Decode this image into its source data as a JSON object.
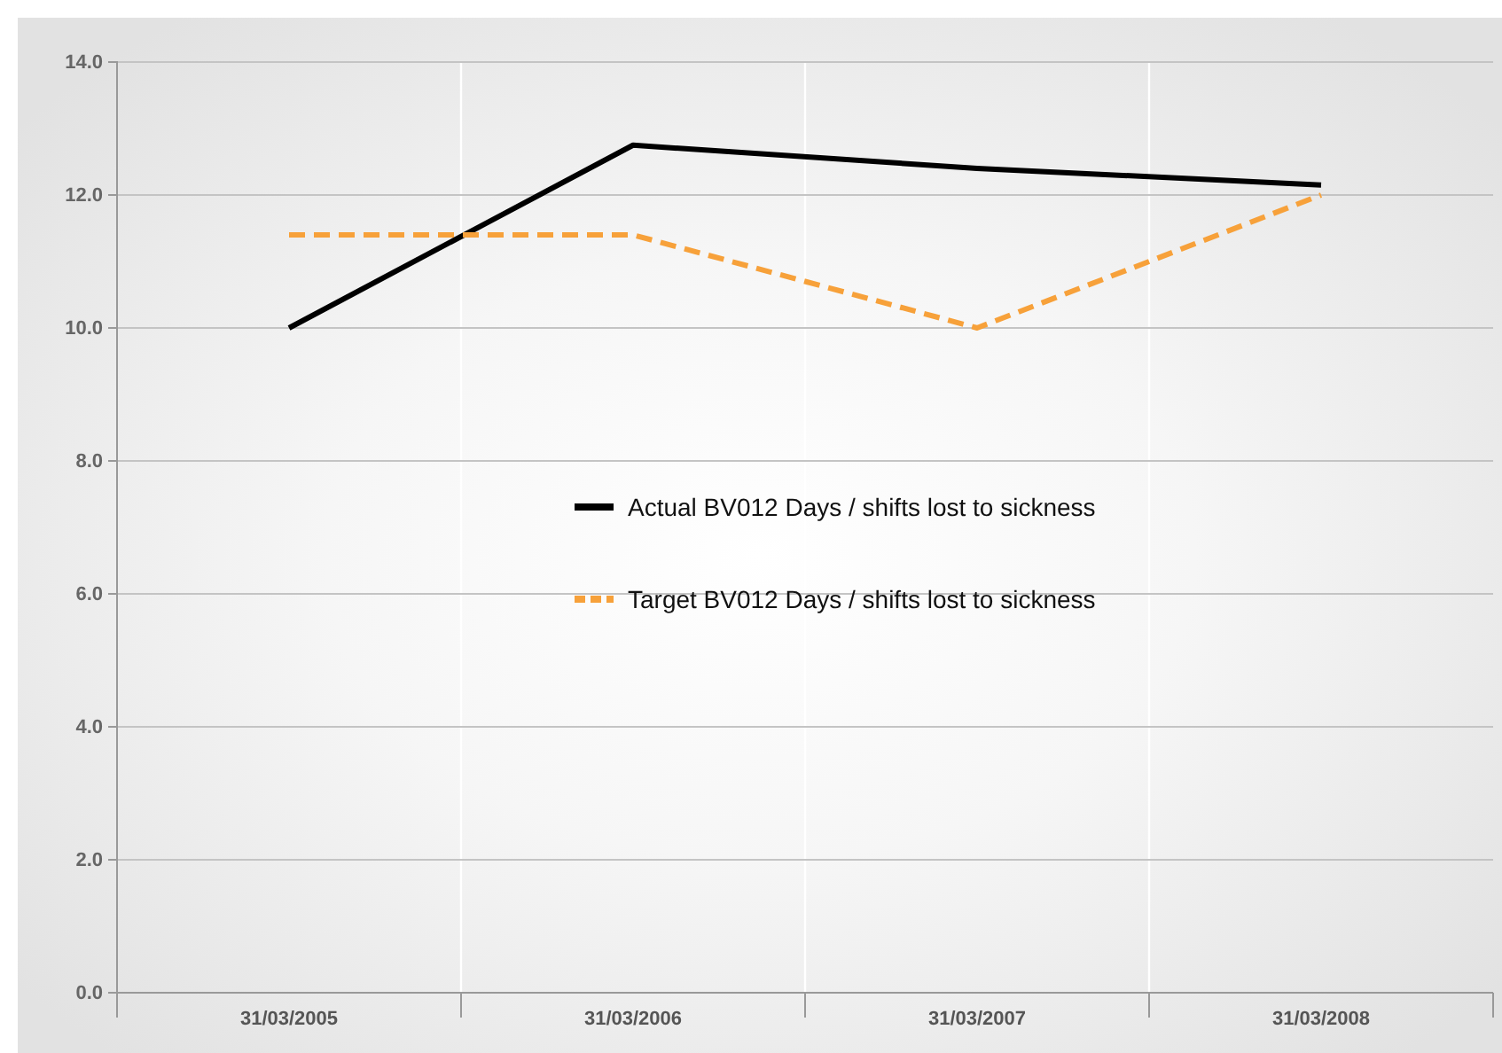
{
  "chart_data": {
    "type": "line",
    "categories": [
      "31/03/2005",
      "31/03/2006",
      "31/03/2007",
      "31/03/2008"
    ],
    "series": [
      {
        "name": "Actual BV012 Days / shifts lost to sickness",
        "color": "#000000",
        "line_style": "solid",
        "values": [
          10.0,
          12.75,
          12.4,
          12.15
        ]
      },
      {
        "name": "Target BV012 Days / shifts lost to sickness",
        "color": "#f7a13a",
        "line_style": "dashed",
        "values": [
          11.4,
          11.4,
          10.0,
          12.0
        ]
      }
    ],
    "ylim": [
      0,
      14
    ],
    "yticks": [
      {
        "value": 0,
        "label": "0.0"
      },
      {
        "value": 2,
        "label": "2.0"
      },
      {
        "value": 4,
        "label": "4.0"
      },
      {
        "value": 6,
        "label": "6.0"
      },
      {
        "value": 8,
        "label": "8.0"
      },
      {
        "value": 10,
        "label": "10.0"
      },
      {
        "value": 12,
        "label": "12.0"
      },
      {
        "value": 14,
        "label": "14.0"
      }
    ],
    "grid": "y",
    "legend": "center",
    "marker": "none"
  }
}
